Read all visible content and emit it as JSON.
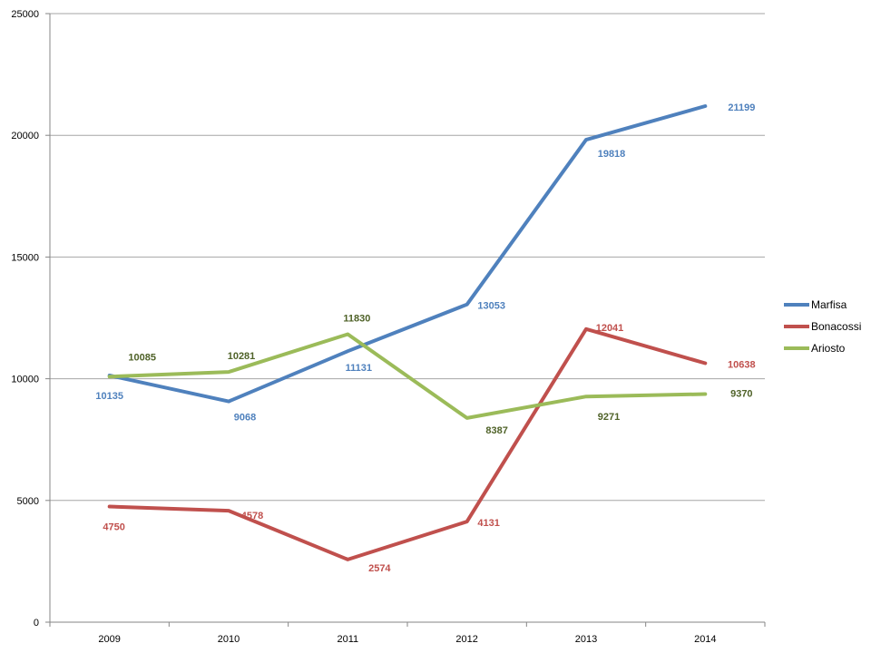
{
  "chart_data": {
    "type": "line",
    "categories": [
      "2009",
      "2010",
      "2011",
      "2012",
      "2013",
      "2014"
    ],
    "ylim": [
      0,
      25000
    ],
    "yticks": [
      0,
      5000,
      10000,
      15000,
      20000,
      25000
    ],
    "grid": true,
    "legend_position": "right",
    "series": [
      {
        "name": "Marfisa",
        "color": "#4F81BD",
        "label_color": "#4F81BD",
        "values": [
          10135,
          9068,
          11131,
          13053,
          19818,
          21199
        ],
        "labels": [
          "10135",
          "9068",
          "11131",
          "13053",
          "19818",
          "21199"
        ]
      },
      {
        "name": "Bonacossi",
        "color": "#C0504D",
        "label_color": "#C0504D",
        "values": [
          4750,
          4578,
          2574,
          4131,
          12041,
          10638
        ],
        "labels": [
          "4750",
          "4578",
          "2574",
          "4131",
          "12041",
          "10638"
        ]
      },
      {
        "name": "Ariosto",
        "color": "#9BBB59",
        "label_color": "#4F6228",
        "values": [
          10085,
          10281,
          11830,
          8387,
          9271,
          9370
        ],
        "labels": [
          "10085",
          "10281",
          "11830",
          "8387",
          "9271",
          "9370"
        ]
      }
    ]
  }
}
